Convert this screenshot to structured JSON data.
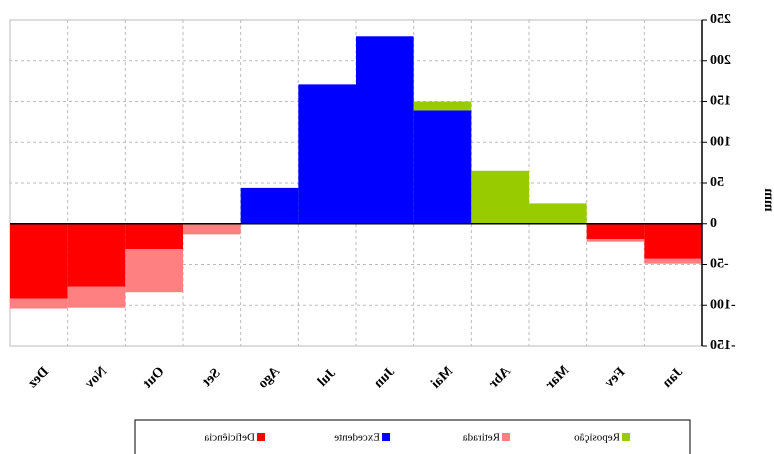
{
  "chart_data": {
    "type": "bar",
    "stacked": true,
    "mirrored": true,
    "y_label": "mm",
    "categories": [
      "Jan",
      "Fev",
      "Mar",
      "Abr",
      "Mai",
      "Jun",
      "Jul",
      "Ago",
      "Set",
      "Out",
      "Nov",
      "Dez"
    ],
    "series": [
      {
        "name": "Deficiência",
        "color": "#ff0000",
        "values": [
          -43,
          -19,
          0,
          0,
          0,
          0,
          0,
          0,
          0,
          -31,
          -77,
          -92
        ]
      },
      {
        "name": "Excedente",
        "color": "#0000ff",
        "values": [
          0,
          0,
          0,
          0,
          139,
          230,
          171,
          44,
          0,
          0,
          0,
          0
        ]
      },
      {
        "name": "Retirada",
        "color": "#ff8080",
        "values": [
          -6,
          -3,
          0,
          0,
          0,
          0,
          0,
          0,
          -13,
          -53,
          -26,
          -12
        ]
      },
      {
        "name": "Reposição",
        "color": "#99cc00",
        "values": [
          0,
          0,
          25,
          65,
          11,
          0,
          0,
          0,
          0,
          0,
          0,
          0
        ]
      }
    ],
    "ylim": [
      -150,
      250
    ],
    "yticks": [
      -150,
      -100,
      -50,
      0,
      50,
      100,
      150,
      200,
      250
    ],
    "grid": true
  }
}
